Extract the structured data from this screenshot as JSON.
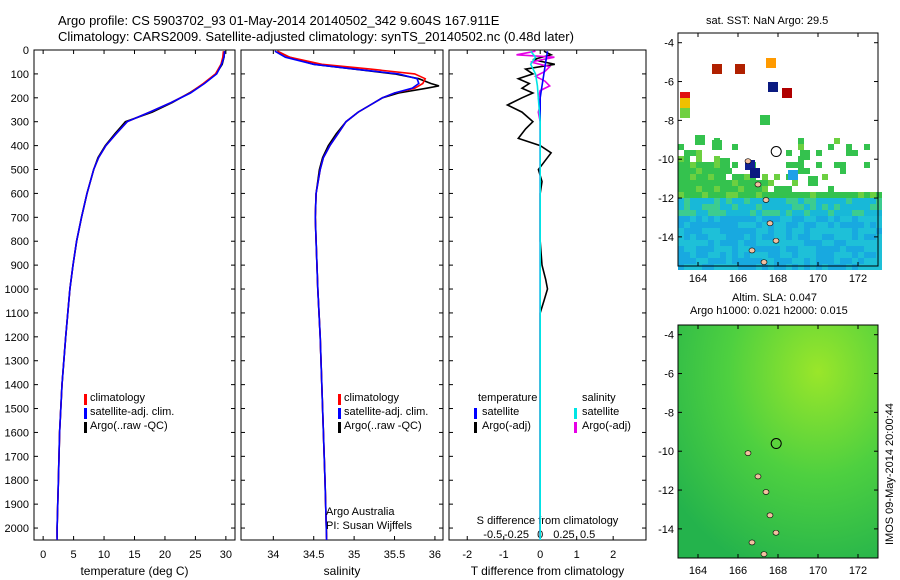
{
  "header": {
    "title_line1": "Argo profile: CS 5903702_93 01-May-2014 20140502_342 9.604S 167.911E",
    "title_line2": "Climatology: CARS2009. Satellite-adjusted climatology: synTS_20140502.nc (0.48d later)"
  },
  "depth_axis": {
    "ylim": [
      0,
      2050
    ],
    "ticks": [
      0,
      100,
      200,
      300,
      400,
      500,
      600,
      700,
      800,
      900,
      1000,
      1100,
      1200,
      1300,
      1400,
      1500,
      1600,
      1700,
      1800,
      1900,
      2000
    ]
  },
  "legends": {
    "temperature_panel": [
      "climatology",
      "satellite-adj. clim.",
      "Argo(..raw -QC)"
    ],
    "salinity_panel": [
      "climatology",
      "satellite-adj. clim.",
      "Argo(..raw -QC)"
    ],
    "diff_temp_header": "temperature",
    "diff_sal_header": "salinity",
    "diff_temp": [
      "satellite",
      "Argo(-adj)"
    ],
    "diff_sal": [
      "satellite",
      "Argo(-adj)"
    ]
  },
  "credits": {
    "line1": "Argo Australia",
    "line2": "PI: Susan Wijffels"
  },
  "map1": {
    "title": "sat. SST: NaN Argo: 29.5",
    "x_ticks": [
      "164",
      "166",
      "168",
      "170",
      "172"
    ],
    "y_ticks": [
      "-4",
      "-6",
      "-8",
      "-10",
      "-12",
      "-14"
    ]
  },
  "map2": {
    "title_line1": "Altim. SLA: 0.047",
    "title_line2": "Argo h1000: 0.021 h2000: 0.015",
    "x_ticks": [
      "164",
      "166",
      "168",
      "170",
      "172"
    ],
    "y_ticks": [
      "-4",
      "-6",
      "-8",
      "-10",
      "-12",
      "-14"
    ]
  },
  "watermark": "IMOS 09-May-2014 20:00:44",
  "colors": {
    "climatology": "#ff0000",
    "satellite": "#0000ff",
    "argo": "#000000",
    "sat_sal": "#00e5e5",
    "argo_sal": "#e600e6"
  },
  "chart_data": [
    {
      "type": "line",
      "title": "",
      "xlabel": "temperature (deg C)",
      "ylabel": "",
      "xlim": [
        -1.5,
        31.5
      ],
      "ylim": [
        0,
        2050
      ],
      "x_ticks": [
        0,
        5,
        10,
        15,
        20,
        25,
        30
      ],
      "y_axis": "depth (inverted)",
      "series": [
        {
          "name": "climatology",
          "depth": [
            5,
            30,
            60,
            100,
            140,
            180,
            220,
            260,
            300,
            350,
            400,
            450,
            500,
            600,
            700,
            800,
            900,
            1000,
            1200,
            1400,
            1600,
            1800,
            2000,
            2050
          ],
          "values": [
            29.6,
            29.5,
            29.2,
            28.3,
            26.3,
            24.1,
            21.0,
            17.5,
            13.8,
            12.0,
            10.3,
            9.1,
            8.3,
            7.2,
            6.3,
            5.5,
            4.9,
            4.4,
            3.7,
            3.1,
            2.7,
            2.5,
            2.3,
            2.3
          ]
        },
        {
          "name": "satellite-adj. clim.",
          "depth": [
            5,
            30,
            60,
            100,
            140,
            180,
            220,
            260,
            300,
            350,
            400,
            450,
            500,
            600,
            700,
            800,
            900,
            1000,
            1200,
            1400,
            1600,
            1800,
            2000,
            2050
          ],
          "values": [
            29.8,
            29.7,
            29.3,
            28.5,
            26.5,
            24.2,
            21.0,
            17.5,
            13.8,
            12.0,
            10.3,
            9.1,
            8.3,
            7.2,
            6.3,
            5.5,
            4.9,
            4.4,
            3.7,
            3.1,
            2.7,
            2.5,
            2.3,
            2.3
          ]
        },
        {
          "name": "Argo(..raw -QC)",
          "depth": [
            5,
            30,
            60,
            100,
            140,
            180,
            220,
            260,
            300,
            350,
            400,
            450,
            500,
            600,
            700,
            800,
            900,
            1000,
            1200,
            1400,
            1600,
            1800,
            2000,
            2040
          ],
          "values": [
            29.8,
            29.7,
            29.4,
            28.4,
            26.4,
            24.0,
            21.2,
            17.9,
            13.5,
            11.8,
            10.2,
            9.0,
            8.3,
            7.2,
            6.3,
            5.5,
            4.9,
            4.4,
            3.7,
            3.1,
            2.7,
            2.5,
            2.3,
            2.3
          ]
        }
      ]
    },
    {
      "type": "line",
      "title": "",
      "xlabel": "salinity",
      "ylabel": "",
      "xlim": [
        33.6,
        36.1
      ],
      "ylim": [
        0,
        2050
      ],
      "x_ticks": [
        34,
        34.5,
        35,
        35.5,
        36
      ],
      "x_tick_labels": [
        "34",
        "34.5",
        "35",
        "35.5",
        "36"
      ],
      "y_axis": "depth (inverted)",
      "series": [
        {
          "name": "climatology",
          "depth": [
            5,
            30,
            60,
            80,
            100,
            120,
            140,
            160,
            180,
            200,
            230,
            260,
            300,
            350,
            400,
            450,
            500,
            600,
            700,
            800,
            1000,
            1200,
            1500,
            1800,
            2050
          ],
          "values": [
            34.05,
            34.2,
            34.6,
            35.2,
            35.75,
            35.88,
            35.85,
            35.75,
            35.5,
            35.35,
            35.2,
            35.05,
            34.9,
            34.8,
            34.7,
            34.62,
            34.58,
            34.53,
            34.52,
            34.53,
            34.55,
            34.58,
            34.61,
            34.64,
            34.66
          ]
        },
        {
          "name": "satellite-adj. clim.",
          "depth": [
            5,
            30,
            60,
            80,
            100,
            120,
            140,
            160,
            180,
            200,
            230,
            260,
            300,
            350,
            400,
            450,
            500,
            600,
            700,
            800,
            1000,
            1200,
            1500,
            1800,
            2050
          ],
          "values": [
            34.02,
            34.15,
            34.5,
            35.0,
            35.55,
            35.78,
            35.8,
            35.72,
            35.5,
            35.35,
            35.2,
            35.05,
            34.9,
            34.8,
            34.7,
            34.62,
            34.58,
            34.53,
            34.52,
            34.53,
            34.55,
            34.58,
            34.61,
            34.64,
            34.66
          ]
        },
        {
          "name": "Argo(..raw -QC)",
          "depth": [
            5,
            30,
            60,
            80,
            100,
            120,
            140,
            150,
            160,
            180,
            200,
            230,
            260,
            300,
            350,
            400,
            450,
            500,
            600,
            700,
            800,
            1000,
            1200,
            1500,
            1800,
            2040
          ],
          "values": [
            34.05,
            34.2,
            34.5,
            35.0,
            35.5,
            35.8,
            35.95,
            36.05,
            35.9,
            35.55,
            35.35,
            35.2,
            35.05,
            34.9,
            34.78,
            34.68,
            34.61,
            34.57,
            34.53,
            34.52,
            34.53,
            34.55,
            34.58,
            34.61,
            34.64,
            34.66
          ]
        }
      ]
    },
    {
      "type": "line",
      "title": "",
      "xlabel": "T difference from climatology",
      "xlabel_top": "S difference from climatology",
      "ylabel": "",
      "xlim": [
        -2.5,
        2.9
      ],
      "x_ticks": [
        -2,
        -1,
        0,
        1,
        2
      ],
      "x_tick_labels_top": [
        "-0.5",
        "-0.25",
        "0",
        "0.25",
        "0.5"
      ],
      "top_tick_positions_T": [
        -1.3,
        -0.65,
        0,
        0.65,
        1.3
      ],
      "ylim": [
        0,
        2050
      ],
      "series": [
        {
          "name": "temperature satellite",
          "depth": [
            5,
            50,
            100,
            150,
            200,
            300,
            400,
            600,
            800,
            1000,
            1500,
            2050
          ],
          "values": [
            0.2,
            0.15,
            0.1,
            0.05,
            0.0,
            0.0,
            0.0,
            0.0,
            0.0,
            0.0,
            0.0,
            0.0
          ]
        },
        {
          "name": "temperature Argo(-adj)",
          "depth": [
            5,
            20,
            40,
            60,
            80,
            100,
            120,
            140,
            160,
            180,
            200,
            230,
            260,
            300,
            330,
            370,
            400,
            430,
            470,
            500,
            550,
            600,
            700,
            800,
            900,
            960,
            1000,
            1050,
            1100,
            1200,
            1500,
            2040
          ],
          "values": [
            0.1,
            0.3,
            -0.2,
            0.4,
            -0.4,
            -0.2,
            -0.6,
            -0.3,
            -0.5,
            -0.2,
            -0.5,
            -0.9,
            -0.5,
            -0.2,
            -0.4,
            -0.6,
            0.0,
            0.3,
            0.1,
            -0.05,
            0.05,
            0.0,
            0.0,
            0.0,
            0.05,
            0.15,
            0.2,
            0.1,
            0.0,
            0.0,
            0.0,
            0.0
          ]
        },
        {
          "name": "salinity satellite",
          "depth": [
            5,
            30,
            60,
            100,
            150,
            200,
            300,
            400,
            600,
            800,
            1000,
            1500,
            2050
          ],
          "values": [
            -0.1,
            -0.05,
            -0.1,
            -0.05,
            -0.03,
            -0.02,
            0.0,
            0.0,
            0.0,
            0.0,
            0.0,
            0.0,
            0.0
          ]
        },
        {
          "name": "salinity Argo(-adj)",
          "depth": [
            5,
            20,
            30,
            50,
            70,
            90,
            110,
            130,
            150,
            170,
            200,
            230,
            260,
            300,
            350,
            400,
            500,
            700,
            1000,
            1500,
            2040
          ],
          "values": [
            -0.05,
            -0.25,
            0.15,
            -0.1,
            0.1,
            0.05,
            -0.05,
            0.05,
            0.1,
            0.0,
            -0.02,
            0.0,
            -0.02,
            0.0,
            0.0,
            0.0,
            0.0,
            0.0,
            0.0,
            0.0,
            0.0
          ]
        }
      ]
    },
    {
      "type": "heatmap",
      "title": "sat. SST: NaN Argo: 29.5",
      "x_range": [
        163,
        173
      ],
      "y_range": [
        -15.5,
        -3.5
      ],
      "x_ticks": [
        164,
        166,
        168,
        170,
        172
      ],
      "y_ticks": [
        -4,
        -6,
        -8,
        -10,
        -12,
        -14
      ],
      "argo_position": [
        167.911,
        -9.604
      ]
    },
    {
      "type": "heatmap",
      "title": "Altim. SLA: 0.047",
      "x_range": [
        163,
        173
      ],
      "y_range": [
        -15.5,
        -3.5
      ],
      "x_ticks": [
        164,
        166,
        168,
        170,
        172
      ],
      "y_ticks": [
        -4,
        -6,
        -8,
        -10,
        -12,
        -14
      ],
      "argo_position": [
        167.911,
        -9.604
      ]
    }
  ]
}
